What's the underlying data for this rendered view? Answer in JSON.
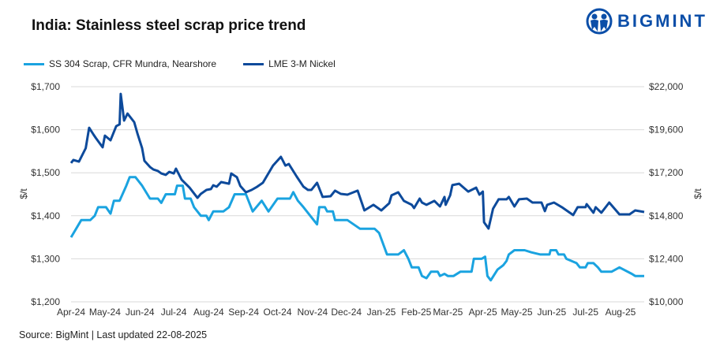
{
  "title": "India: Stainless steel scrap price trend",
  "logo": {
    "text": "BIGMINT",
    "color": "#0b4ea8"
  },
  "source": "Source: BigMint | Last updated 22-08-2025",
  "chart_data": {
    "type": "line",
    "title": "India: Stainless steel scrap price trend",
    "ylabel_left": "$/t",
    "ylabel_right": "$/t",
    "ylim_left": [
      1200,
      1700
    ],
    "ylim_right": [
      10000,
      22000
    ],
    "left_ticks": [
      "$1,200",
      "$1,300",
      "$1,400",
      "$1,500",
      "$1,600",
      "$1,700"
    ],
    "left_tick_values": [
      1200,
      1300,
      1400,
      1500,
      1600,
      1700
    ],
    "right_ticks": [
      "$10,000",
      "$12,400",
      "$14,800",
      "$17,200",
      "$19,600",
      "$22,000"
    ],
    "right_tick_values": [
      10000,
      12400,
      14800,
      17200,
      19600,
      22000
    ],
    "x_ticks": [
      "Apr-24",
      "May-24",
      "Jun-24",
      "Jul-24",
      "Aug-24",
      "Sep-24",
      "Oct-24",
      "Nov-24",
      "Dec-24",
      "Jan-25",
      "Feb-25",
      "Mar-25",
      "Apr-25",
      "May-25",
      "Jun-25",
      "Jul-25",
      "Aug-25"
    ],
    "x_tick_dates": [
      "2024-04-01",
      "2024-05-01",
      "2024-06-01",
      "2024-07-01",
      "2024-08-01",
      "2024-09-01",
      "2024-10-01",
      "2024-11-01",
      "2024-12-01",
      "2025-01-01",
      "2025-02-01",
      "2025-03-01",
      "2025-04-01",
      "2025-05-01",
      "2025-06-01",
      "2025-07-01",
      "2025-08-01"
    ],
    "xlim": [
      "2024-04-01",
      "2025-08-22"
    ],
    "grid": "horizontal",
    "legend_position": "top-left",
    "series": [
      {
        "name": "SS 304 Scrap, CFR Mundra, Nearshore",
        "axis": "left",
        "color": "#1aa3e0",
        "points": [
          [
            "2024-04-01",
            1350
          ],
          [
            "2024-04-10",
            1390
          ],
          [
            "2024-04-18",
            1390
          ],
          [
            "2024-04-22",
            1400
          ],
          [
            "2024-04-25",
            1420
          ],
          [
            "2024-05-02",
            1420
          ],
          [
            "2024-05-06",
            1405
          ],
          [
            "2024-05-09",
            1435
          ],
          [
            "2024-05-14",
            1435
          ],
          [
            "2024-05-20",
            1470
          ],
          [
            "2024-05-23",
            1490
          ],
          [
            "2024-05-28",
            1490
          ],
          [
            "2024-06-03",
            1470
          ],
          [
            "2024-06-10",
            1440
          ],
          [
            "2024-06-17",
            1440
          ],
          [
            "2024-06-20",
            1430
          ],
          [
            "2024-06-24",
            1450
          ],
          [
            "2024-07-02",
            1450
          ],
          [
            "2024-07-04",
            1470
          ],
          [
            "2024-07-09",
            1470
          ],
          [
            "2024-07-11",
            1440
          ],
          [
            "2024-07-16",
            1440
          ],
          [
            "2024-07-19",
            1420
          ],
          [
            "2024-07-25",
            1400
          ],
          [
            "2024-07-30",
            1400
          ],
          [
            "2024-08-01",
            1390
          ],
          [
            "2024-08-05",
            1410
          ],
          [
            "2024-08-14",
            1410
          ],
          [
            "2024-08-19",
            1420
          ],
          [
            "2024-08-24",
            1450
          ],
          [
            "2024-09-03",
            1450
          ],
          [
            "2024-09-09",
            1410
          ],
          [
            "2024-09-17",
            1435
          ],
          [
            "2024-09-23",
            1410
          ],
          [
            "2024-10-01",
            1440
          ],
          [
            "2024-10-12",
            1440
          ],
          [
            "2024-10-15",
            1455
          ],
          [
            "2024-10-19",
            1435
          ],
          [
            "2024-10-24",
            1420
          ],
          [
            "2024-11-05",
            1380
          ],
          [
            "2024-11-07",
            1420
          ],
          [
            "2024-11-12",
            1420
          ],
          [
            "2024-11-14",
            1410
          ],
          [
            "2024-11-19",
            1410
          ],
          [
            "2024-11-21",
            1390
          ],
          [
            "2024-12-02",
            1390
          ],
          [
            "2024-12-13",
            1370
          ],
          [
            "2024-12-26",
            1370
          ],
          [
            "2024-12-30",
            1360
          ],
          [
            "2025-01-06",
            1310
          ],
          [
            "2025-01-16",
            1310
          ],
          [
            "2025-01-21",
            1320
          ],
          [
            "2025-01-25",
            1300
          ],
          [
            "2025-01-28",
            1280
          ],
          [
            "2025-02-03",
            1280
          ],
          [
            "2025-02-06",
            1260
          ],
          [
            "2025-02-10",
            1255
          ],
          [
            "2025-02-14",
            1270
          ],
          [
            "2025-02-20",
            1270
          ],
          [
            "2025-02-22",
            1260
          ],
          [
            "2025-02-26",
            1265
          ],
          [
            "2025-03-01",
            1260
          ],
          [
            "2025-03-06",
            1260
          ],
          [
            "2025-03-12",
            1270
          ],
          [
            "2025-03-22",
            1270
          ],
          [
            "2025-03-24",
            1300
          ],
          [
            "2025-03-31",
            1300
          ],
          [
            "2025-04-03",
            1305
          ],
          [
            "2025-04-05",
            1260
          ],
          [
            "2025-04-08",
            1250
          ],
          [
            "2025-04-14",
            1275
          ],
          [
            "2025-04-19",
            1285
          ],
          [
            "2025-04-22",
            1295
          ],
          [
            "2025-04-24",
            1310
          ],
          [
            "2025-04-29",
            1320
          ],
          [
            "2025-05-08",
            1320
          ],
          [
            "2025-05-14",
            1315
          ],
          [
            "2025-05-22",
            1310
          ],
          [
            "2025-05-30",
            1310
          ],
          [
            "2025-05-31",
            1320
          ],
          [
            "2025-06-05",
            1320
          ],
          [
            "2025-06-07",
            1310
          ],
          [
            "2025-06-12",
            1310
          ],
          [
            "2025-06-14",
            1300
          ],
          [
            "2025-06-23",
            1290
          ],
          [
            "2025-06-26",
            1280
          ],
          [
            "2025-07-01",
            1280
          ],
          [
            "2025-07-03",
            1290
          ],
          [
            "2025-07-08",
            1290
          ],
          [
            "2025-07-12",
            1280
          ],
          [
            "2025-07-15",
            1270
          ],
          [
            "2025-07-24",
            1270
          ],
          [
            "2025-07-31",
            1280
          ],
          [
            "2025-08-11",
            1265
          ],
          [
            "2025-08-14",
            1260
          ],
          [
            "2025-08-22",
            1260
          ]
        ]
      },
      {
        "name": "LME 3-M Nickel",
        "axis": "right",
        "color": "#0d4a9b",
        "points": [
          [
            "2024-04-01",
            17740
          ],
          [
            "2024-04-03",
            17910
          ],
          [
            "2024-04-08",
            17820
          ],
          [
            "2024-04-14",
            18570
          ],
          [
            "2024-04-17",
            19710
          ],
          [
            "2024-04-21",
            19320
          ],
          [
            "2024-04-23",
            19140
          ],
          [
            "2024-04-29",
            18620
          ],
          [
            "2024-05-01",
            19270
          ],
          [
            "2024-05-06",
            19010
          ],
          [
            "2024-05-11",
            19800
          ],
          [
            "2024-05-14",
            19900
          ],
          [
            "2024-05-15",
            21600
          ],
          [
            "2024-05-18",
            20110
          ],
          [
            "2024-05-21",
            20500
          ],
          [
            "2024-05-27",
            20020
          ],
          [
            "2024-05-30",
            19360
          ],
          [
            "2024-06-03",
            18570
          ],
          [
            "2024-06-05",
            17870
          ],
          [
            "2024-06-10",
            17520
          ],
          [
            "2024-06-13",
            17380
          ],
          [
            "2024-06-17",
            17300
          ],
          [
            "2024-06-20",
            17160
          ],
          [
            "2024-06-24",
            17080
          ],
          [
            "2024-06-27",
            17250
          ],
          [
            "2024-07-01",
            17160
          ],
          [
            "2024-07-03",
            17430
          ],
          [
            "2024-07-08",
            16810
          ],
          [
            "2024-07-15",
            16370
          ],
          [
            "2024-07-22",
            15800
          ],
          [
            "2024-07-25",
            16020
          ],
          [
            "2024-07-30",
            16240
          ],
          [
            "2024-08-03",
            16290
          ],
          [
            "2024-08-05",
            16500
          ],
          [
            "2024-08-08",
            16420
          ],
          [
            "2024-08-12",
            16680
          ],
          [
            "2024-08-19",
            16590
          ],
          [
            "2024-08-21",
            17160
          ],
          [
            "2024-08-26",
            16950
          ],
          [
            "2024-08-29",
            16460
          ],
          [
            "2024-09-03",
            16110
          ],
          [
            "2024-09-08",
            16240
          ],
          [
            "2024-09-13",
            16420
          ],
          [
            "2024-09-18",
            16640
          ],
          [
            "2024-09-27",
            17600
          ],
          [
            "2024-10-04",
            18090
          ],
          [
            "2024-10-08",
            17600
          ],
          [
            "2024-10-11",
            17690
          ],
          [
            "2024-10-18",
            16990
          ],
          [
            "2024-10-24",
            16420
          ],
          [
            "2024-10-28",
            16240
          ],
          [
            "2024-10-31",
            16240
          ],
          [
            "2024-11-05",
            16640
          ],
          [
            "2024-11-10",
            15850
          ],
          [
            "2024-11-17",
            15890
          ],
          [
            "2024-11-21",
            16200
          ],
          [
            "2024-11-26",
            16020
          ],
          [
            "2024-12-02",
            15980
          ],
          [
            "2024-12-11",
            16200
          ],
          [
            "2024-12-17",
            15100
          ],
          [
            "2024-12-25",
            15410
          ],
          [
            "2025-01-01",
            15100
          ],
          [
            "2025-01-08",
            15500
          ],
          [
            "2025-01-10",
            15940
          ],
          [
            "2025-01-16",
            16110
          ],
          [
            "2025-01-21",
            15630
          ],
          [
            "2025-01-28",
            15410
          ],
          [
            "2025-01-30",
            15230
          ],
          [
            "2025-02-04",
            15760
          ],
          [
            "2025-02-06",
            15540
          ],
          [
            "2025-02-10",
            15410
          ],
          [
            "2025-02-17",
            15630
          ],
          [
            "2025-02-22",
            15320
          ],
          [
            "2025-02-26",
            15850
          ],
          [
            "2025-02-27",
            15410
          ],
          [
            "2025-03-03",
            15940
          ],
          [
            "2025-03-05",
            16510
          ],
          [
            "2025-03-08",
            16550
          ],
          [
            "2025-03-11",
            16590
          ],
          [
            "2025-03-15",
            16370
          ],
          [
            "2025-03-19",
            16150
          ],
          [
            "2025-03-26",
            16370
          ],
          [
            "2025-03-29",
            15980
          ],
          [
            "2025-04-01",
            16150
          ],
          [
            "2025-04-02",
            14440
          ],
          [
            "2025-04-06",
            14090
          ],
          [
            "2025-04-10",
            15190
          ],
          [
            "2025-04-15",
            15720
          ],
          [
            "2025-04-22",
            15720
          ],
          [
            "2025-04-24",
            15850
          ],
          [
            "2025-04-29",
            15320
          ],
          [
            "2025-05-03",
            15720
          ],
          [
            "2025-05-10",
            15760
          ],
          [
            "2025-05-15",
            15540
          ],
          [
            "2025-05-23",
            15540
          ],
          [
            "2025-05-26",
            15060
          ],
          [
            "2025-05-28",
            15410
          ],
          [
            "2025-06-03",
            15540
          ],
          [
            "2025-06-10",
            15280
          ],
          [
            "2025-06-17",
            14970
          ],
          [
            "2025-06-20",
            14840
          ],
          [
            "2025-06-24",
            15280
          ],
          [
            "2025-07-01",
            15280
          ],
          [
            "2025-07-02",
            15450
          ],
          [
            "2025-07-08",
            14970
          ],
          [
            "2025-07-10",
            15280
          ],
          [
            "2025-07-15",
            14970
          ],
          [
            "2025-07-22",
            15540
          ],
          [
            "2025-07-31",
            14880
          ],
          [
            "2025-08-09",
            14880
          ],
          [
            "2025-08-14",
            15100
          ],
          [
            "2025-08-22",
            15010
          ]
        ]
      }
    ]
  }
}
